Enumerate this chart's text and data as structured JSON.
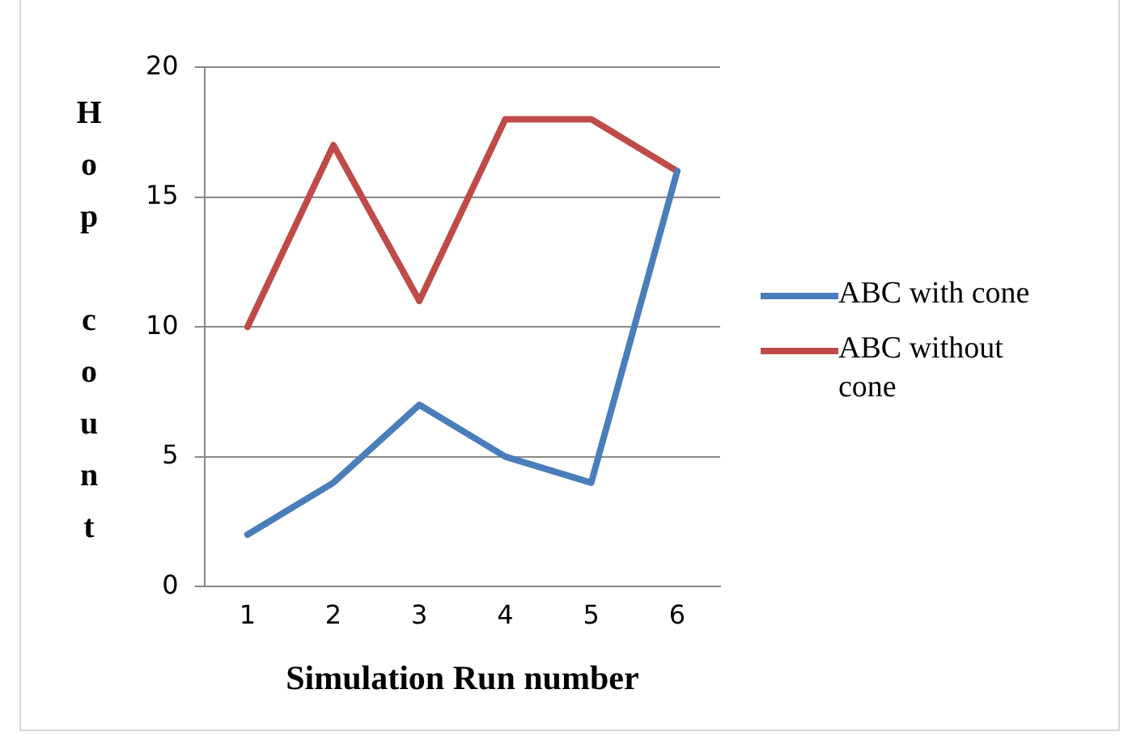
{
  "chart_data": {
    "type": "line",
    "xlabel": "Simulation Run number",
    "ylabel": "Hop count",
    "categories": [
      "1",
      "2",
      "3",
      "4",
      "5",
      "6"
    ],
    "series": [
      {
        "name": "ABC with cone",
        "color": "#4a7ebb",
        "values": [
          2,
          4,
          7,
          5,
          4,
          16
        ]
      },
      {
        "name": "ABC without cone",
        "color": "#be4b48",
        "values": [
          10,
          17,
          11,
          18,
          18,
          16
        ]
      }
    ],
    "ylim": [
      0,
      20
    ],
    "yticks": [
      0,
      5,
      10,
      15,
      20
    ],
    "grid": "y",
    "legend": "right",
    "marker": "none",
    "line_style": "solid"
  }
}
